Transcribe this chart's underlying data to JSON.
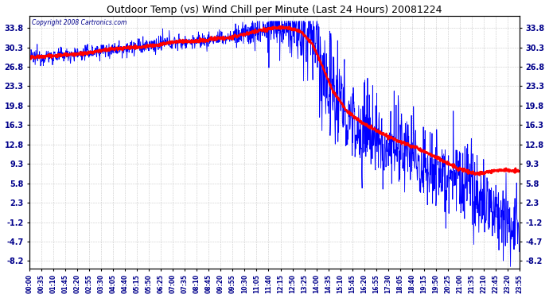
{
  "title": "Outdoor Temp (vs) Wind Chill per Minute (Last 24 Hours) 20081224",
  "copyright": "Copyright 2008 Cartronics.com",
  "yticks": [
    33.8,
    30.3,
    26.8,
    23.3,
    19.8,
    16.3,
    12.8,
    9.3,
    5.8,
    2.3,
    -1.2,
    -4.7,
    -8.2
  ],
  "ylim": [
    -9.5,
    36.0
  ],
  "xtick_labels": [
    "00:00",
    "00:35",
    "01:10",
    "01:45",
    "02:20",
    "02:55",
    "03:30",
    "04:05",
    "04:40",
    "05:15",
    "05:50",
    "06:25",
    "07:00",
    "07:35",
    "08:10",
    "08:45",
    "09:20",
    "09:55",
    "10:30",
    "11:05",
    "11:40",
    "12:15",
    "12:50",
    "13:25",
    "14:00",
    "14:35",
    "15:10",
    "15:45",
    "16:20",
    "16:55",
    "17:30",
    "18:05",
    "18:40",
    "19:15",
    "19:50",
    "20:25",
    "21:00",
    "21:35",
    "22:10",
    "22:45",
    "23:20",
    "23:55"
  ],
  "n_minutes": 1440,
  "background_color": "#ffffff",
  "grid_color": "#bbbbbb",
  "title_color": "#000000",
  "blue_color": "#0000ff",
  "red_color": "#ff0000",
  "label_color": "#00008b",
  "figsize": [
    6.9,
    3.75
  ],
  "dpi": 100,
  "outdoor_ctrl_t": [
    0,
    80,
    160,
    240,
    350,
    420,
    500,
    580,
    640,
    690,
    720,
    750,
    780,
    800,
    830,
    860,
    890,
    930,
    970,
    1010,
    1060,
    1110,
    1160,
    1210,
    1260,
    1310,
    1360,
    1400,
    1440
  ],
  "outdoor_ctrl_v": [
    28.5,
    28.8,
    29.2,
    30.0,
    30.5,
    31.2,
    31.5,
    32.0,
    32.8,
    33.5,
    33.8,
    33.8,
    33.5,
    33.0,
    31.0,
    27.0,
    22.0,
    18.0,
    16.0,
    14.5,
    12.5,
    11.0,
    9.5,
    8.0,
    6.0,
    3.5,
    1.5,
    -1.0,
    -3.0
  ],
  "windchill_ctrl_t": [
    0,
    80,
    160,
    240,
    350,
    420,
    500,
    580,
    640,
    690,
    720,
    750,
    780,
    800,
    830,
    860,
    890,
    930,
    970,
    1010,
    1060,
    1110,
    1160,
    1210,
    1260,
    1310,
    1360,
    1400,
    1440
  ],
  "windchill_ctrl_v": [
    28.5,
    28.8,
    29.2,
    30.0,
    30.5,
    31.2,
    31.5,
    32.0,
    32.8,
    33.5,
    33.8,
    33.8,
    33.5,
    33.0,
    31.0,
    27.0,
    22.5,
    19.0,
    17.0,
    15.5,
    14.0,
    12.8,
    11.5,
    10.0,
    8.5,
    7.5,
    8.0,
    8.2,
    8.0
  ]
}
